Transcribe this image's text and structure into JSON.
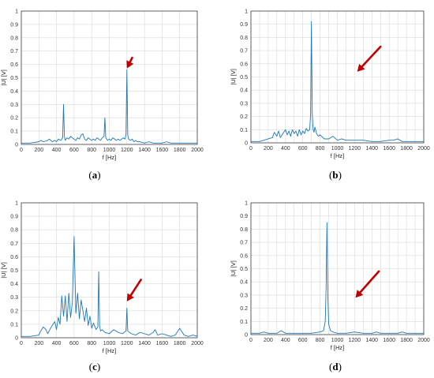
{
  "chart_data": [
    {
      "type": "line",
      "panel": "(a)",
      "panel_letter": "a",
      "xlabel": "f [Hz]",
      "ylabel": "|U| [V]",
      "xlim": [
        0,
        2000
      ],
      "ylim": [
        0,
        1
      ],
      "xticks": [
        0,
        200,
        400,
        600,
        800,
        1000,
        1200,
        1400,
        1600,
        1800,
        2000
      ],
      "yticks": [
        0,
        0.1,
        0.2,
        0.3,
        0.4,
        0.5,
        0.6,
        0.7,
        0.8,
        0.9,
        1
      ],
      "grid": true,
      "line_color": "#1f77b4",
      "arrow": {
        "x": 1260,
        "y": 0.65,
        "tip_x": 1200,
        "tip_y": 0.57,
        "color": "#c00000"
      },
      "series": [
        {
          "x": [
            0,
            100,
            200,
            220,
            250,
            300,
            320,
            350,
            380,
            400,
            420,
            450,
            470,
            480,
            490,
            500,
            520,
            540,
            560,
            580,
            600,
            620,
            640,
            660,
            680,
            700,
            720,
            740,
            760,
            780,
            800,
            820,
            840,
            860,
            880,
            900,
            920,
            940,
            950,
            960,
            970,
            980,
            1000,
            1020,
            1040,
            1060,
            1080,
            1100,
            1120,
            1140,
            1160,
            1180,
            1190,
            1200,
            1210,
            1220,
            1240,
            1260,
            1280,
            1300,
            1320,
            1350,
            1400,
            1450,
            1500,
            1550,
            1600,
            1650,
            1700,
            1750,
            1800,
            1850,
            1900,
            1950,
            2000
          ],
          "y": [
            0.01,
            0.01,
            0.02,
            0.03,
            0.02,
            0.03,
            0.04,
            0.02,
            0.03,
            0.02,
            0.04,
            0.03,
            0.05,
            0.3,
            0.06,
            0.03,
            0.05,
            0.04,
            0.06,
            0.05,
            0.04,
            0.03,
            0.05,
            0.04,
            0.07,
            0.08,
            0.04,
            0.03,
            0.05,
            0.04,
            0.03,
            0.04,
            0.03,
            0.05,
            0.04,
            0.03,
            0.05,
            0.06,
            0.2,
            0.05,
            0.04,
            0.03,
            0.04,
            0.03,
            0.05,
            0.04,
            0.03,
            0.04,
            0.03,
            0.04,
            0.05,
            0.04,
            0.08,
            0.56,
            0.07,
            0.04,
            0.03,
            0.04,
            0.02,
            0.03,
            0.02,
            0.02,
            0.01,
            0.02,
            0.01,
            0.01,
            0.01,
            0.02,
            0.01,
            0.01,
            0.01,
            0.01,
            0.01,
            0.01,
            0.01
          ]
        }
      ]
    },
    {
      "type": "line",
      "panel": "(b)",
      "panel_letter": "b",
      "xlabel": "f [Hz]",
      "ylabel": "|U| [V]",
      "xlim": [
        0,
        2000
      ],
      "ylim": [
        0,
        1
      ],
      "xticks": [
        0,
        100,
        200,
        300,
        400,
        500,
        600,
        700,
        800,
        900,
        1000,
        1100,
        1200,
        1300,
        1400,
        1500,
        1600,
        1700,
        1800,
        1900,
        2000
      ],
      "xticklabels_show": [
        0,
        200,
        400,
        600,
        800,
        1000,
        1200,
        1400,
        1600,
        1800,
        2000
      ],
      "yticks": [
        0,
        0.1,
        0.2,
        0.3,
        0.4,
        0.5,
        0.6,
        0.7,
        0.8,
        0.9,
        1
      ],
      "grid": true,
      "line_color": "#1f77b4",
      "arrow": {
        "x": 1500,
        "y": 0.73,
        "tip_x": 1230,
        "tip_y": 0.54,
        "color": "#c00000"
      },
      "series": [
        {
          "x": [
            0,
            100,
            150,
            200,
            250,
            270,
            300,
            320,
            340,
            360,
            380,
            400,
            420,
            440,
            460,
            480,
            500,
            520,
            540,
            560,
            580,
            600,
            620,
            640,
            660,
            680,
            690,
            700,
            710,
            720,
            730,
            740,
            760,
            780,
            800,
            850,
            900,
            950,
            1000,
            1050,
            1100,
            1200,
            1300,
            1400,
            1500,
            1600,
            1650,
            1700,
            1750,
            1800,
            1900,
            2000
          ],
          "y": [
            0.01,
            0.01,
            0.02,
            0.03,
            0.04,
            0.08,
            0.05,
            0.09,
            0.04,
            0.06,
            0.08,
            0.1,
            0.06,
            0.09,
            0.05,
            0.1,
            0.07,
            0.09,
            0.05,
            0.1,
            0.06,
            0.09,
            0.07,
            0.11,
            0.09,
            0.1,
            0.21,
            0.92,
            0.22,
            0.1,
            0.08,
            0.12,
            0.07,
            0.05,
            0.06,
            0.03,
            0.03,
            0.05,
            0.02,
            0.03,
            0.02,
            0.02,
            0.02,
            0.01,
            0.01,
            0.02,
            0.02,
            0.03,
            0.01,
            0.01,
            0.01,
            0.01
          ]
        }
      ]
    },
    {
      "type": "line",
      "panel": "(c)",
      "panel_letter": "c",
      "xlabel": "f [Hz]",
      "ylabel": "|U| [V]",
      "xlim": [
        0,
        2000
      ],
      "ylim": [
        0,
        1
      ],
      "xticks": [
        0,
        200,
        400,
        600,
        800,
        1000,
        1200,
        1400,
        1600,
        1800,
        2000
      ],
      "yticks": [
        0,
        0.1,
        0.2,
        0.3,
        0.4,
        0.5,
        0.6,
        0.7,
        0.8,
        0.9,
        1
      ],
      "grid": true,
      "line_color": "#1f77b4",
      "arrow": {
        "x": 1360,
        "y": 0.43,
        "tip_x": 1200,
        "tip_y": 0.27,
        "color": "#c00000"
      },
      "series": [
        {
          "x": [
            0,
            100,
            200,
            220,
            250,
            280,
            300,
            340,
            380,
            400,
            420,
            440,
            460,
            480,
            500,
            520,
            540,
            560,
            580,
            600,
            620,
            640,
            660,
            680,
            700,
            720,
            740,
            760,
            780,
            800,
            820,
            850,
            870,
            880,
            890,
            900,
            920,
            950,
            1000,
            1050,
            1100,
            1150,
            1190,
            1200,
            1210,
            1250,
            1300,
            1350,
            1400,
            1450,
            1500,
            1520,
            1550,
            1600,
            1650,
            1700,
            1750,
            1800,
            1850,
            1900,
            1950,
            2000
          ],
          "y": [
            0.01,
            0.01,
            0.02,
            0.05,
            0.08,
            0.06,
            0.03,
            0.08,
            0.12,
            0.06,
            0.15,
            0.1,
            0.31,
            0.16,
            0.31,
            0.12,
            0.33,
            0.15,
            0.26,
            0.75,
            0.18,
            0.33,
            0.14,
            0.28,
            0.2,
            0.12,
            0.22,
            0.09,
            0.16,
            0.07,
            0.11,
            0.06,
            0.08,
            0.49,
            0.09,
            0.05,
            0.06,
            0.04,
            0.03,
            0.06,
            0.04,
            0.03,
            0.05,
            0.22,
            0.05,
            0.03,
            0.02,
            0.04,
            0.03,
            0.02,
            0.04,
            0.06,
            0.02,
            0.03,
            0.02,
            0.01,
            0.02,
            0.07,
            0.02,
            0.01,
            0.02,
            0.01
          ]
        }
      ]
    },
    {
      "type": "line",
      "panel": "(d)",
      "panel_letter": "d",
      "xlabel": "f [Hz]",
      "ylabel": "|U| [V]",
      "xlim": [
        0,
        2000
      ],
      "ylim": [
        0,
        1
      ],
      "xticks": [
        0,
        100,
        200,
        300,
        400,
        500,
        600,
        700,
        800,
        900,
        1000,
        1100,
        1200,
        1300,
        1400,
        1500,
        1600,
        1700,
        1800,
        1900,
        2000
      ],
      "xticklabels_show": [
        0,
        200,
        400,
        600,
        800,
        1000,
        1200,
        1400,
        1600,
        1800,
        2000
      ],
      "yticks": [
        0,
        0.1,
        0.2,
        0.3,
        0.4,
        0.5,
        0.6,
        0.7,
        0.8,
        0.9,
        1
      ],
      "grid": true,
      "line_color": "#1f77b4",
      "arrow": {
        "x": 1480,
        "y": 0.48,
        "tip_x": 1210,
        "tip_y": 0.28,
        "color": "#c00000"
      },
      "series": [
        {
          "x": [
            0,
            100,
            150,
            200,
            300,
            350,
            400,
            500,
            600,
            700,
            800,
            840,
            860,
            870,
            880,
            890,
            900,
            920,
            950,
            1000,
            1100,
            1200,
            1300,
            1400,
            1450,
            1500,
            1600,
            1700,
            1750,
            1800,
            1900,
            2000
          ],
          "y": [
            0.01,
            0.01,
            0.02,
            0.01,
            0.01,
            0.03,
            0.01,
            0.01,
            0.01,
            0.01,
            0.02,
            0.03,
            0.1,
            0.35,
            0.85,
            0.3,
            0.08,
            0.03,
            0.02,
            0.01,
            0.01,
            0.02,
            0.01,
            0.01,
            0.02,
            0.01,
            0.01,
            0.01,
            0.02,
            0.01,
            0.01,
            0.01
          ]
        }
      ]
    }
  ]
}
